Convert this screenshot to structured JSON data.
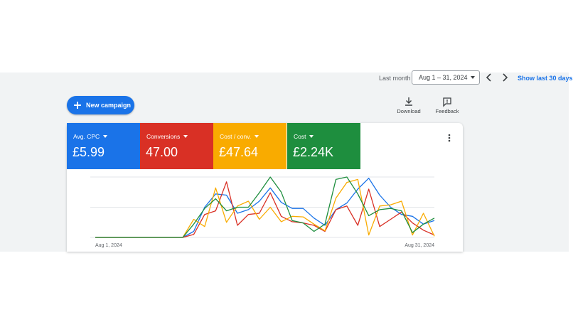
{
  "header": {
    "range_label": "Last month",
    "date_range": "Aug 1 – 31, 2024",
    "show_last_label": "Show last 30 days",
    "prev_icon": "chevron-left-icon",
    "next_icon": "chevron-right-icon"
  },
  "actions": {
    "new_campaign_label": "New campaign",
    "download_label": "Download",
    "feedback_label": "Feedback"
  },
  "metrics": [
    {
      "name": "Avg. CPC",
      "value": "£5.99",
      "color": "#1a73e8"
    },
    {
      "name": "Conversions",
      "value": "47.00",
      "color": "#d93025"
    },
    {
      "name": "Cost / conv.",
      "value": "£47.64",
      "color": "#f9ab00"
    },
    {
      "name": "Cost",
      "value": "£2.24K",
      "color": "#1e8e3e"
    }
  ],
  "chart_data": {
    "type": "line",
    "x_start_label": "Aug 1, 2024",
    "x_end_label": "Aug 31, 2024",
    "grid": true,
    "legend": "none",
    "series": [
      {
        "color": "#1a73e8",
        "values": [
          0,
          0,
          0,
          0,
          0,
          0,
          0,
          0,
          0,
          0.1,
          0.5,
          0.72,
          0.7,
          0.4,
          0.46,
          0.6,
          0.82,
          0.58,
          0.48,
          0.48,
          0.32,
          0.2,
          0.46,
          0.57,
          0.8,
          0.98,
          0.7,
          0.5,
          0.38,
          0.35,
          0.22,
          0.28
        ]
      },
      {
        "color": "#d93025",
        "values": [
          0,
          0,
          0,
          0,
          0,
          0,
          0,
          0,
          0,
          0.05,
          0.38,
          0.44,
          0.92,
          0.2,
          0.38,
          0.4,
          0.74,
          0.35,
          0.26,
          0.24,
          0.2,
          0.1,
          0.46,
          0.52,
          0.2,
          0.8,
          0.18,
          0.3,
          0.42,
          0.24,
          0.12,
          0.04
        ]
      },
      {
        "color": "#f9ab00",
        "values": [
          0,
          0,
          0,
          0,
          0,
          0,
          0,
          0,
          0,
          0.3,
          0.18,
          0.82,
          0.25,
          0.52,
          0.6,
          0.3,
          0.5,
          0.26,
          0.35,
          0.34,
          0.22,
          0.11,
          0.65,
          0.91,
          0.96,
          0.04,
          0.52,
          0.54,
          0.6,
          0.04,
          0.4,
          0.02
        ]
      },
      {
        "color": "#1e8e3e",
        "values": [
          0,
          0,
          0,
          0,
          0,
          0,
          0,
          0,
          0,
          0.22,
          0.48,
          0.64,
          0.44,
          0.5,
          0.5,
          0.74,
          1.0,
          0.75,
          0.28,
          0.24,
          0.1,
          0.22,
          0.96,
          1.0,
          0.72,
          0.36,
          0.46,
          0.48,
          0.44,
          0.08,
          0.22,
          0.32
        ]
      }
    ]
  }
}
